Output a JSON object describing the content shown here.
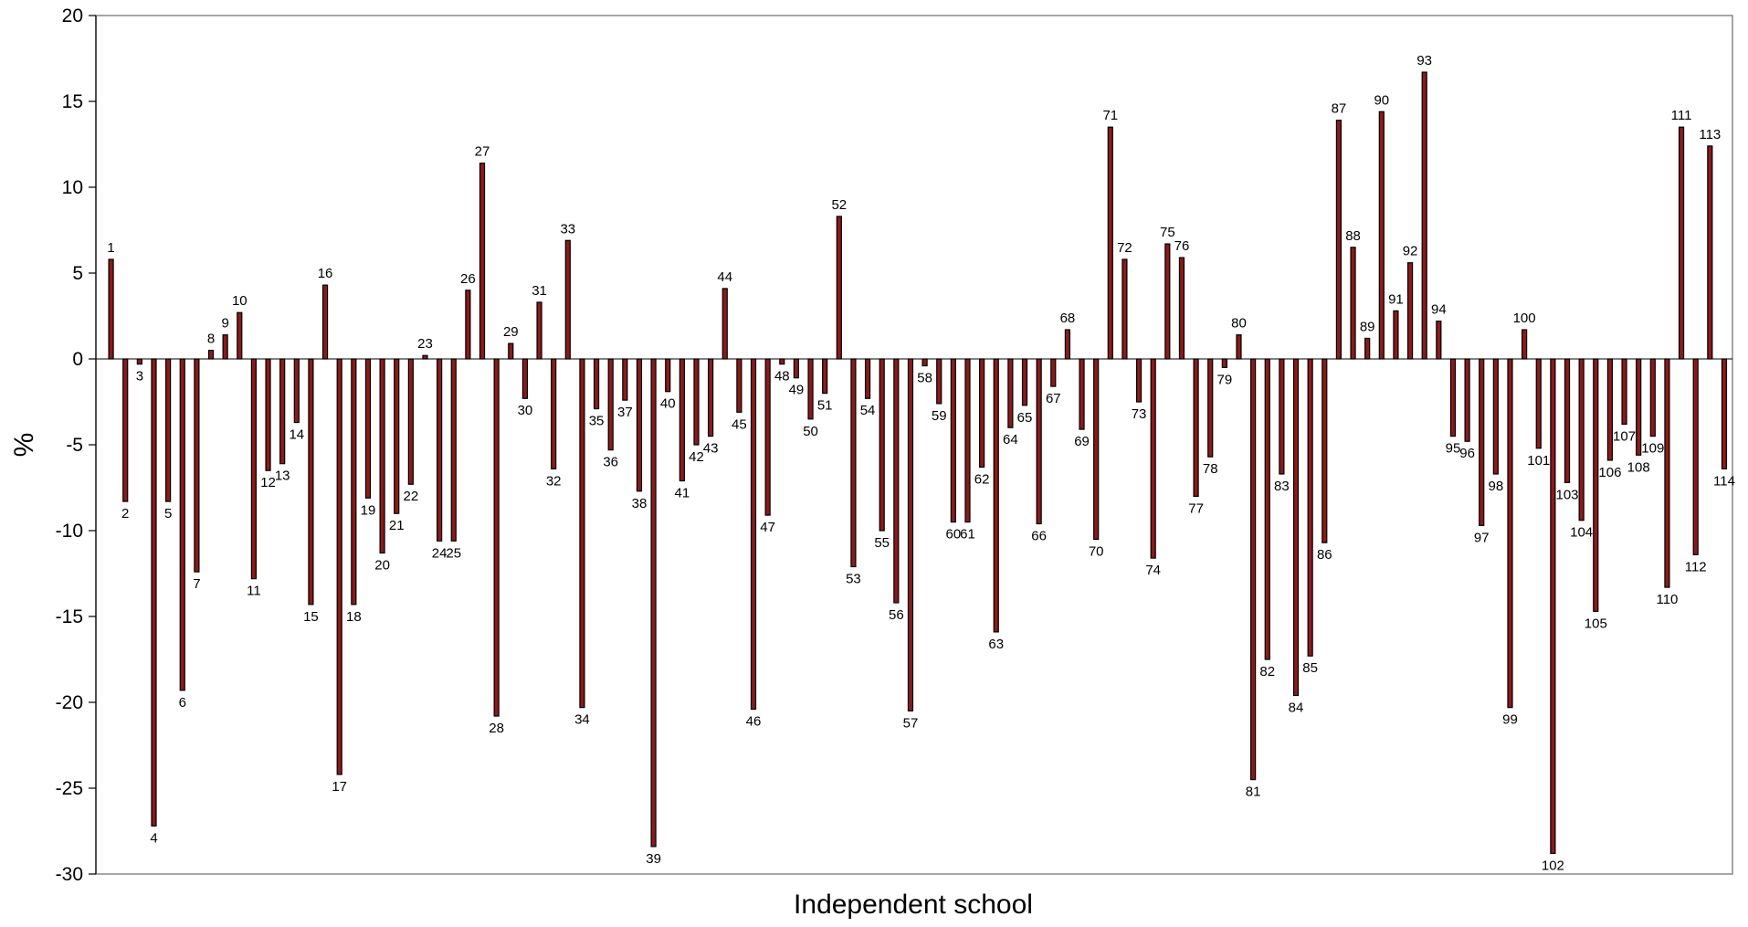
{
  "chart_data": {
    "type": "bar",
    "title": "",
    "xlabel": "Independent school",
    "ylabel": "%",
    "ylim": [
      -30,
      20
    ],
    "yticks": [
      20,
      15,
      10,
      5,
      0,
      -5,
      -10,
      -15,
      -20,
      -25,
      -30
    ],
    "grid": false,
    "labeled_bars": [
      {
        "label": "1",
        "value": 5.8
      },
      {
        "label": "2",
        "value": -8.3
      },
      {
        "label": "3",
        "value": -0.3
      },
      {
        "label": "4",
        "value": -27.2
      },
      {
        "label": "5",
        "value": -8.3
      },
      {
        "label": "6",
        "value": -19.3
      },
      {
        "label": "7",
        "value": -12.4
      },
      {
        "label": "8",
        "value": 0.5
      },
      {
        "label": "9",
        "value": 1.4
      },
      {
        "label": "10",
        "value": 2.7
      },
      {
        "label": "11",
        "value": -12.8
      },
      {
        "label": "12",
        "value": -6.5
      },
      {
        "label": "13",
        "value": -6.1
      },
      {
        "label": "14",
        "value": -3.7
      },
      {
        "label": "15",
        "value": -14.3
      },
      {
        "label": "16",
        "value": 4.3
      },
      {
        "label": "17",
        "value": -24.2
      },
      {
        "label": "18",
        "value": -14.3
      },
      {
        "label": "19",
        "value": -8.1
      },
      {
        "label": "20",
        "value": -11.3
      },
      {
        "label": "21",
        "value": -9.0
      },
      {
        "label": "22",
        "value": -7.3
      },
      {
        "label": "23",
        "value": 0.2
      },
      {
        "label": "24",
        "value": -10.6
      },
      {
        "label": "25",
        "value": -10.6
      },
      {
        "label": "26",
        "value": 4.0
      },
      {
        "label": "27",
        "value": 11.4
      },
      {
        "label": "28",
        "value": -20.8
      },
      {
        "label": "29",
        "value": 0.9
      },
      {
        "label": "30",
        "value": -2.3
      },
      {
        "label": "31",
        "value": 3.3
      },
      {
        "label": "32",
        "value": -6.4
      },
      {
        "label": "33",
        "value": 6.9
      },
      {
        "label": "34",
        "value": -20.3
      },
      {
        "label": "35",
        "value": -2.9
      },
      {
        "label": "36",
        "value": -5.3
      },
      {
        "label": "37",
        "value": -2.4
      },
      {
        "label": "38",
        "value": -7.7
      },
      {
        "label": "39",
        "value": -28.4
      },
      {
        "label": "40",
        "value": -1.9
      },
      {
        "label": "41",
        "value": -7.1
      },
      {
        "label": "42",
        "value": -5.0
      },
      {
        "label": "43",
        "value": -4.5
      },
      {
        "label": "44",
        "value": 4.1
      },
      {
        "label": "45",
        "value": -3.1
      },
      {
        "label": "46",
        "value": -20.4
      },
      {
        "label": "47",
        "value": -9.1
      },
      {
        "label": "48",
        "value": -0.3
      },
      {
        "label": "49",
        "value": -1.1
      },
      {
        "label": "50",
        "value": -3.5
      },
      {
        "label": "51",
        "value": -2.0
      },
      {
        "label": "52",
        "value": 8.3
      },
      {
        "label": "53",
        "value": -12.1
      },
      {
        "label": "54",
        "value": -2.3
      },
      {
        "label": "55",
        "value": -10.0
      },
      {
        "label": "56",
        "value": -14.2
      },
      {
        "label": "57",
        "value": -20.5
      },
      {
        "label": "58",
        "value": -0.4
      },
      {
        "label": "59",
        "value": -2.6
      },
      {
        "label": "60",
        "value": -9.5
      },
      {
        "label": "61",
        "value": -9.5
      },
      {
        "label": "62",
        "value": -6.3
      },
      {
        "label": "63",
        "value": -15.9
      },
      {
        "label": "64",
        "value": -4.0
      },
      {
        "label": "65",
        "value": -2.7
      },
      {
        "label": "66",
        "value": -9.6
      },
      {
        "label": "67",
        "value": -1.6
      },
      {
        "label": "68",
        "value": 1.7
      },
      {
        "label": "69",
        "value": -4.1
      },
      {
        "label": "70",
        "value": -10.5
      },
      {
        "label": "71",
        "value": 13.5
      },
      {
        "label": "72",
        "value": 5.8
      },
      {
        "label": "73",
        "value": -2.5
      },
      {
        "label": "74",
        "value": -11.6
      },
      {
        "label": "75",
        "value": 6.7
      },
      {
        "label": "76",
        "value": 5.9
      },
      {
        "label": "77",
        "value": -8.0
      },
      {
        "label": "78",
        "value": -5.7
      },
      {
        "label": "79",
        "value": -0.5
      },
      {
        "label": "80",
        "value": 1.4
      },
      {
        "label": "81",
        "value": -24.5
      },
      {
        "label": "82",
        "value": -17.5
      },
      {
        "label": "83",
        "value": -6.7
      },
      {
        "label": "84",
        "value": -19.6
      },
      {
        "label": "85",
        "value": -17.3
      },
      {
        "label": "86",
        "value": -10.7
      },
      {
        "label": "87",
        "value": 13.9
      },
      {
        "label": "88",
        "value": 6.5
      },
      {
        "label": "89",
        "value": 1.2
      },
      {
        "label": "90",
        "value": 14.4
      },
      {
        "label": "91",
        "value": 2.8
      },
      {
        "label": "92",
        "value": 5.6
      },
      {
        "label": "93",
        "value": 16.7
      },
      {
        "label": "94",
        "value": 2.2
      },
      {
        "label": "95",
        "value": -4.5
      },
      {
        "label": "96",
        "value": -4.8
      },
      {
        "label": "97",
        "value": -9.7
      },
      {
        "label": "98",
        "value": -6.7
      },
      {
        "label": "99",
        "value": -20.3
      },
      {
        "label": "100",
        "value": 1.7
      },
      {
        "label": "101",
        "value": -5.2
      },
      {
        "label": "102",
        "value": -28.8
      },
      {
        "label": "103",
        "value": -7.2
      },
      {
        "label": "104",
        "value": -9.4
      },
      {
        "label": "105",
        "value": -14.7
      },
      {
        "label": "106",
        "value": -5.9
      },
      {
        "label": "107",
        "value": -3.8
      },
      {
        "label": "108",
        "value": -5.6
      },
      {
        "label": "109",
        "value": -4.5
      },
      {
        "label": "110",
        "value": -13.3
      },
      {
        "label": "111",
        "value": 13.5
      },
      {
        "label": "112",
        "value": -11.4
      },
      {
        "label": "113",
        "value": 12.4
      },
      {
        "label": "114",
        "value": -6.4
      }
    ]
  }
}
